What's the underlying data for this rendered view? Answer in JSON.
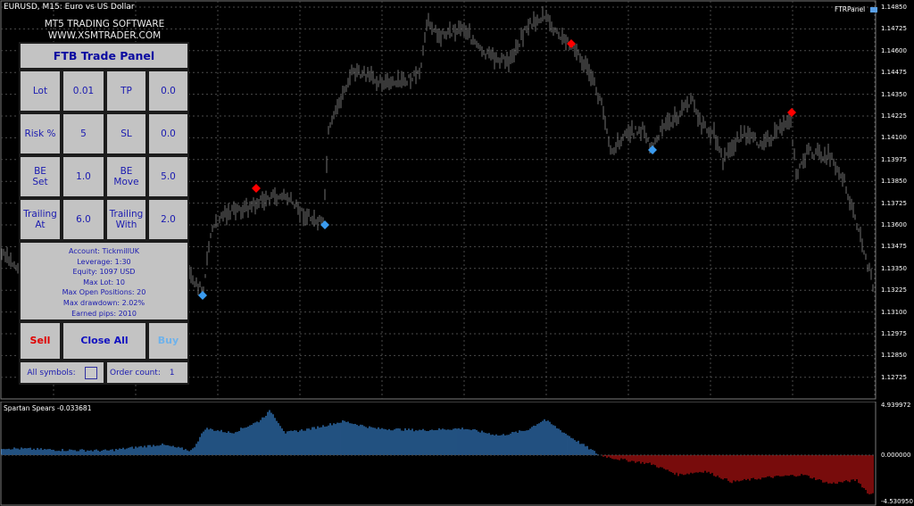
{
  "chart": {
    "title": "EURUSD, M15:  Euro vs US Dollar",
    "indicator_label": "FTRPanel",
    "price_labels": [
      "1.14850",
      "1.14725",
      "1.14600",
      "1.14475",
      "1.14350",
      "1.14225",
      "1.14100",
      "1.13975",
      "1.13850",
      "1.13725",
      "1.13600",
      "1.13475",
      "1.13350",
      "1.13225",
      "1.13100",
      "1.12975",
      "1.12850",
      "1.12725"
    ],
    "bar_color": "#707070",
    "sell_marker_color": "#ff0000",
    "buy_marker_color": "#3a9bef",
    "grid_color": "#4a4a4a"
  },
  "logo": {
    "line1": "MT5 TRADING SOFTWARE",
    "line2": "WWW.XSMTRADER.COM"
  },
  "panel": {
    "title": "FTB Trade Panel",
    "params": [
      {
        "label": "Lot",
        "value": "0.01"
      },
      {
        "label": "TP",
        "value": "0.0"
      },
      {
        "label": "Risk %",
        "value": "5"
      },
      {
        "label": "SL",
        "value": "0.0"
      },
      {
        "label": "BE\nSet",
        "value": "1.0"
      },
      {
        "label": "BE\nMove",
        "value": "5.0"
      },
      {
        "label": "Trailing\nAt",
        "value": "6.0"
      },
      {
        "label": "Trailing\nWith",
        "value": "2.0"
      }
    ],
    "info": {
      "account": "Account: TickmillUK",
      "leverage": "Leverage: 1:30",
      "equity": "Equity: 1097 USD",
      "max_lot": "Max Lot: 10",
      "max_open": "Max Open Positions: 20",
      "max_dd": "Max drawdown: 2.02%",
      "earned": "Earned pips: 2010"
    },
    "sell_label": "Sell",
    "close_all_label": "Close All",
    "buy_label": "Buy",
    "all_symbols_label": "All symbols:",
    "all_symbols_checked": false,
    "order_count_label": "Order count:",
    "order_count_value": "1"
  },
  "subwindow": {
    "title": "Spartan Spears -0.033681",
    "labels": [
      "4.939972",
      "0.000000",
      "-4.530950"
    ],
    "positive_color": "#3a87d6",
    "negative_color": "#c81414"
  }
}
